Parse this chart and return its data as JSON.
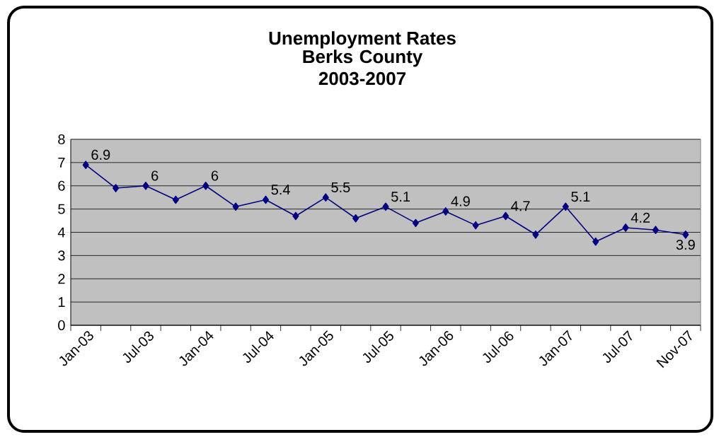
{
  "chart_data": {
    "type": "line",
    "title": "Unemployment Rates",
    "subtitle": "Berks County 2003-2007",
    "categories": [
      "Jan-03",
      null,
      "Jul-03",
      null,
      "Jan-04",
      null,
      "Jul-04",
      null,
      "Jan-05",
      null,
      "Jul-05",
      null,
      "Jan-06",
      null,
      "Jul-06",
      null,
      "Jan-07",
      null,
      "Jul-07",
      null,
      "Nov-07"
    ],
    "values": [
      6.9,
      5.9,
      6,
      5.4,
      6,
      5.1,
      5.4,
      4.7,
      5.5,
      4.6,
      5.1,
      4.4,
      4.9,
      4.3,
      4.7,
      3.9,
      5.1,
      3.6,
      4.2,
      4.1,
      3.9
    ],
    "value_labels": [
      "6.9",
      null,
      "6",
      null,
      "6",
      null,
      "5.4",
      null,
      "5.5",
      null,
      "5.1",
      null,
      "4.9",
      null,
      "4.7",
      null,
      "5.1",
      null,
      "4.2",
      null,
      "3.9"
    ],
    "color": "#000080",
    "marker": "diamond",
    "line_style": "solid",
    "grid": "y",
    "ylim": [
      0,
      8
    ],
    "yticks": [
      0,
      1,
      2,
      3,
      4,
      5,
      6,
      7,
      8
    ]
  }
}
